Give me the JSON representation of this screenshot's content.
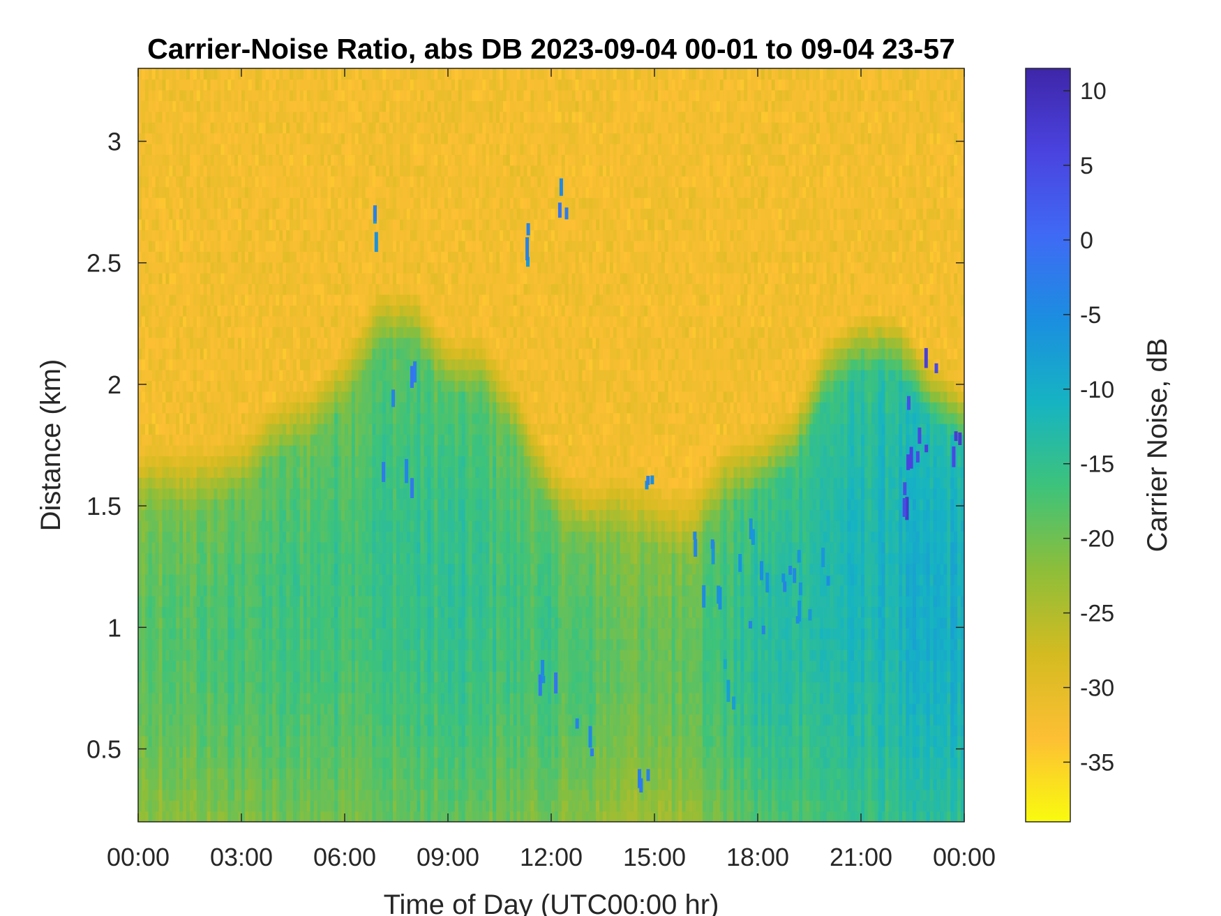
{
  "chart_data": {
    "type": "heatmap",
    "title": "Carrier-Noise Ratio, abs DB 2023-09-04 00-01 to 09-04 23-57",
    "xlabel": "Time of Day (UTC00:00 hr)",
    "ylabel": "Distance (km)",
    "x_ticks": [
      "00:00",
      "03:00",
      "06:00",
      "09:00",
      "12:00",
      "15:00",
      "18:00",
      "21:00",
      "00:00"
    ],
    "x_range_hours": [
      0,
      24
    ],
    "y_ticks": [
      0.5,
      1,
      1.5,
      2,
      2.5,
      3
    ],
    "y_range_km": [
      0.2,
      3.3
    ],
    "colorbar": {
      "label": "Carrier Noise, dB",
      "range_db": [
        -39,
        11.5
      ],
      "ticks": [
        10,
        5,
        0,
        -5,
        -10,
        -15,
        -20,
        -25,
        -30,
        -35
      ],
      "colors": [
        "#f9fb0e",
        "#fdbf34",
        "#d4bb21",
        "#8ebe39",
        "#3ec37a",
        "#16b4c2",
        "#1b8ee0",
        "#3f6af5",
        "#4a43e0",
        "#3e26a8"
      ]
    },
    "boundary_layer_top_km": {
      "x_hours": [
        0,
        1,
        2,
        3,
        4,
        5,
        6,
        7,
        8,
        9,
        10,
        11,
        12,
        13,
        14,
        15,
        16,
        17,
        18,
        19,
        20,
        21,
        22,
        23,
        24
      ],
      "values": [
        1.65,
        1.65,
        1.65,
        1.7,
        1.85,
        1.9,
        2.05,
        2.3,
        2.3,
        2.1,
        2.1,
        1.9,
        1.6,
        1.5,
        1.55,
        1.5,
        1.45,
        1.65,
        1.7,
        1.8,
        2.1,
        2.2,
        2.2,
        2.0,
        1.9
      ]
    },
    "near_surface_cnr_db": {
      "x_hours": [
        0,
        3,
        6,
        9,
        12,
        15,
        18,
        21,
        24
      ],
      "values": [
        -22,
        -20,
        -19,
        -18,
        -20,
        -23,
        -17,
        -15,
        -13
      ]
    },
    "free_atmosphere_cnr_db": -32,
    "strong_return_patches": [
      {
        "x_hours": [
          22.2,
          24
        ],
        "y_km": [
          1.7,
          2.15
        ],
        "value_db": 6
      },
      {
        "x_hours": [
          22.2,
          22.3
        ],
        "y_km": [
          1.52,
          1.6
        ],
        "value_db": 6
      },
      {
        "x_hours": [
          6.8,
          7.0
        ],
        "y_km": [
          2.6,
          2.8
        ],
        "value_db": -5
      },
      {
        "x_hours": [
          7.0,
          8.0
        ],
        "y_km": [
          1.6,
          2.3
        ],
        "value_db": -3
      },
      {
        "x_hours": [
          11.2,
          11.4
        ],
        "y_km": [
          2.5,
          2.8
        ],
        "value_db": -5
      },
      {
        "x_hours": [
          12.2,
          12.4
        ],
        "y_km": [
          2.7,
          2.85
        ],
        "value_db": -3
      },
      {
        "x_hours": [
          11.5,
          12.2
        ],
        "y_km": [
          0.8,
          1.35
        ],
        "value_db": -3
      },
      {
        "x_hours": [
          12.7,
          13.2
        ],
        "y_km": [
          0.4,
          0.75
        ],
        "value_db": -3
      },
      {
        "x_hours": [
          14.5,
          14.8
        ],
        "y_km": [
          0.3,
          0.7
        ],
        "value_db": -3
      },
      {
        "x_hours": [
          14.6,
          14.9
        ],
        "y_km": [
          1.6,
          1.75
        ],
        "value_db": -5
      },
      {
        "x_hours": [
          16.0,
          20.0
        ],
        "y_km": [
          1.0,
          1.45
        ],
        "value_db": -5
      },
      {
        "x_hours": [
          17.0,
          17.3
        ],
        "y_km": [
          0.7,
          0.9
        ],
        "value_db": -8
      }
    ]
  }
}
